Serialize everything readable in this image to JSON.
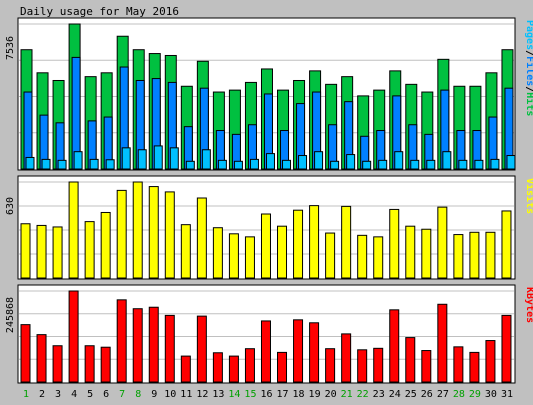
{
  "chart_data": {
    "type": "bar",
    "title": "Daily usage for May 2016",
    "categories": [
      "1",
      "2",
      "3",
      "4",
      "5",
      "6",
      "7",
      "8",
      "9",
      "10",
      "11",
      "12",
      "13",
      "14",
      "15",
      "16",
      "17",
      "18",
      "19",
      "20",
      "21",
      "22",
      "23",
      "24",
      "25",
      "26",
      "27",
      "28",
      "29",
      "30",
      "31"
    ],
    "weekend_days": [
      "1",
      "7",
      "8",
      "14",
      "15",
      "21",
      "22",
      "28",
      "29"
    ],
    "colors": {
      "background": "#C0C0C0",
      "plot_bg": "#FFFFFF",
      "grid": "#C0C0C0",
      "hits": "#00C040",
      "files": "#0080FF",
      "pages": "#00C0FF",
      "visits": "#FFFF00",
      "kbytes": "#FF0000",
      "weekend_label": "#00A000",
      "weekday_label": "#000000"
    },
    "panels": [
      {
        "key": "hits_panel",
        "max_label": "7536",
        "ylim": [
          0,
          7536
        ],
        "side_labels": [
          {
            "text": "Pages",
            "color": "#00C0FF"
          },
          {
            "text": "/",
            "color": "#000000"
          },
          {
            "text": "Files",
            "color": "#0080FF"
          },
          {
            "text": "/",
            "color": "#000000"
          },
          {
            "text": "Hits",
            "color": "#00C040"
          }
        ],
        "series": [
          {
            "name": "Hits",
            "color": "#00C040",
            "values": [
              6200,
              5000,
              4600,
              7536,
              4800,
              5000,
              6900,
              6200,
              6000,
              5900,
              4300,
              5600,
              4000,
              4100,
              4500,
              5200,
              4100,
              4600,
              5100,
              4400,
              4800,
              3800,
              4100,
              5100,
              4400,
              4000,
              5700,
              4300,
              4300,
              5000,
              6200
            ]
          },
          {
            "name": "Files",
            "color": "#0080FF",
            "values": [
              4000,
              2800,
              2400,
              5800,
              2500,
              2700,
              5300,
              4600,
              4700,
              4500,
              2200,
              4200,
              2000,
              1800,
              2300,
              3900,
              2000,
              3400,
              4000,
              2300,
              3500,
              1700,
              2000,
              3800,
              2300,
              1800,
              4100,
              2000,
              2000,
              2700,
              4200
            ]
          },
          {
            "name": "Pages",
            "color": "#00C0FF",
            "values": [
              600,
              500,
              450,
              900,
              500,
              480,
              1100,
              1000,
              1200,
              1100,
              400,
              1000,
              450,
              400,
              500,
              800,
              450,
              700,
              900,
              400,
              750,
              400,
              450,
              900,
              450,
              450,
              900,
              450,
              450,
              500,
              700
            ]
          }
        ]
      },
      {
        "key": "visits_panel",
        "max_label": "630",
        "ylim": [
          0,
          630
        ],
        "side_labels": [
          {
            "text": "Visits",
            "color": "#FFFF00"
          }
        ],
        "series": [
          {
            "name": "Visits",
            "color": "#FFFF00",
            "values": [
              356,
              345,
              335,
              630,
              370,
              430,
              575,
              630,
              600,
              565,
              350,
              525,
              330,
              290,
              270,
              420,
              340,
              445,
              475,
              295,
              470,
              280,
              270,
              450,
              340,
              320,
              465,
              285,
              300,
              300,
              440
            ]
          }
        ]
      },
      {
        "key": "kbytes_panel",
        "max_label": "245868",
        "ylim": [
          0,
          245868
        ],
        "side_labels": [
          {
            "text": "KBytes",
            "color": "#FF0000"
          }
        ],
        "series": [
          {
            "name": "KBytes",
            "color": "#FF0000",
            "values": [
              155000,
              128000,
              98000,
              245868,
              98000,
              94000,
              222000,
              198000,
              202000,
              180000,
              70000,
              178000,
              79000,
              70000,
              90000,
              165000,
              80000,
              168000,
              160000,
              90000,
              130000,
              87000,
              91000,
              195000,
              120000,
              85000,
              210000,
              95000,
              80000,
              112000,
              180000
            ]
          }
        ]
      }
    ]
  }
}
